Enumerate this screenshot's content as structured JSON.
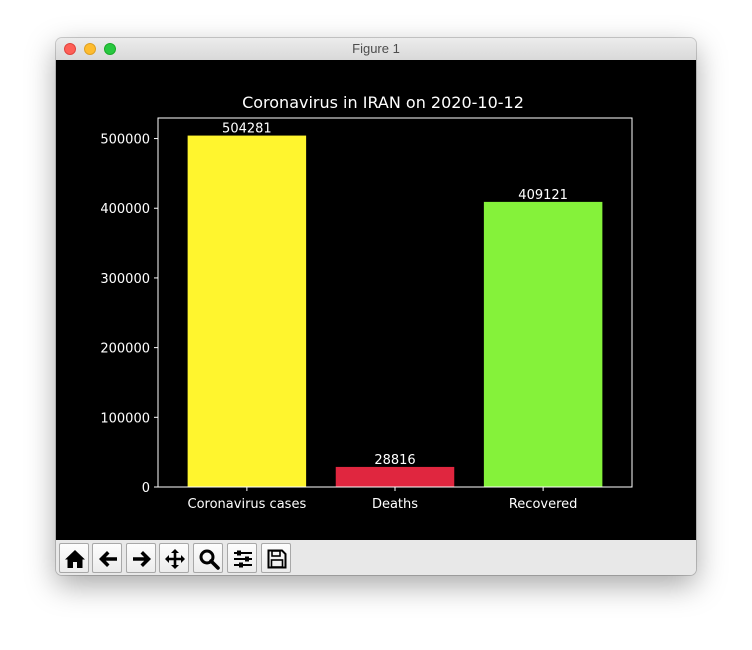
{
  "window": {
    "title": "Figure 1"
  },
  "toolbar": {
    "buttons": [
      {
        "name": "home-button",
        "icon": "home-icon"
      },
      {
        "name": "back-button",
        "icon": "arrow-left-icon"
      },
      {
        "name": "forward-button",
        "icon": "arrow-right-icon"
      },
      {
        "name": "pan-button",
        "icon": "move-icon"
      },
      {
        "name": "zoom-button",
        "icon": "magnifier-icon"
      },
      {
        "name": "configure-subplots-button",
        "icon": "sliders-icon"
      },
      {
        "name": "save-button",
        "icon": "floppy-disk-icon"
      }
    ]
  },
  "colors": {
    "background": "#000000",
    "foreground": "#ffffff",
    "bars": [
      "#fff52e",
      "#e0263f",
      "#85f23a"
    ]
  },
  "chart_data": {
    "type": "bar",
    "title": "Coronavirus in IRAN on 2020-10-12",
    "xlabel": "",
    "ylabel": "",
    "categories": [
      "Coronavirus cases",
      "Deaths",
      "Recovered"
    ],
    "values": [
      504281,
      28816,
      409121
    ],
    "data_labels": [
      "504281",
      "28816",
      "409121"
    ],
    "ylim": [
      0,
      529495
    ],
    "yticks": [
      0,
      100000,
      200000,
      300000,
      400000,
      500000
    ],
    "ytick_labels": [
      "0",
      "100000",
      "200000",
      "300000",
      "400000",
      "500000"
    ],
    "grid": false,
    "legend": "none"
  }
}
